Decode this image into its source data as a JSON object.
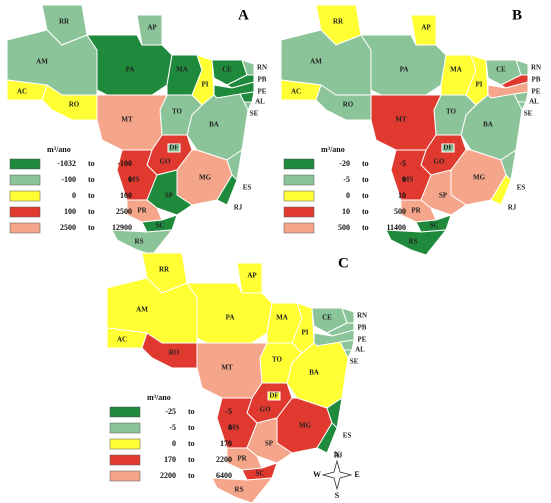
{
  "panels": [
    {
      "letter": "A",
      "unit": "m³/ano",
      "range_word": "to",
      "legend": [
        {
          "color": "#1f8a3c",
          "from": -1032,
          "to": -100
        },
        {
          "color": "#8cc49a",
          "from": -100,
          "to": 0
        },
        {
          "color": "#ffff33",
          "from": 0,
          "to": 100
        },
        {
          "color": "#e03a30",
          "from": 100,
          "to": 2500
        },
        {
          "color": "#f4a58a",
          "from": 2500,
          "to": 12900
        }
      ],
      "states": [
        {
          "label": "RR",
          "color": "#8cc49a"
        },
        {
          "label": "AP",
          "color": "#8cc49a"
        },
        {
          "label": "AM",
          "color": "#8cc49a"
        },
        {
          "label": "PA",
          "color": "#1f8a3c"
        },
        {
          "label": "MA",
          "color": "#1f8a3c"
        },
        {
          "label": "PI",
          "color": "#ffff33"
        },
        {
          "label": "CE",
          "color": "#1f8a3c"
        },
        {
          "label": "RN",
          "color": "#8cc49a"
        },
        {
          "label": "PB",
          "color": "#1f8a3c"
        },
        {
          "label": "PE",
          "color": "#1f8a3c"
        },
        {
          "label": "AL",
          "color": "#1f8a3c"
        },
        {
          "label": "SE",
          "color": "#8cc49a"
        },
        {
          "label": "BA",
          "color": "#8cc49a"
        },
        {
          "label": "TO",
          "color": "#8cc49a"
        },
        {
          "label": "AC",
          "color": "#ffff33"
        },
        {
          "label": "RO",
          "color": "#ffff33"
        },
        {
          "label": "MT",
          "color": "#f4a58a"
        },
        {
          "label": "GO",
          "color": "#e03a30"
        },
        {
          "label": "MG",
          "color": "#f4a58a"
        },
        {
          "label": "ES",
          "color": "#8cc49a"
        },
        {
          "label": "RJ",
          "color": "#1f8a3c"
        },
        {
          "label": "MS",
          "color": "#e03a30"
        },
        {
          "label": "SP",
          "color": "#1f8a3c"
        },
        {
          "label": "PR",
          "color": "#f4a58a"
        },
        {
          "label": "SC",
          "color": "#1f8a3c"
        },
        {
          "label": "RS",
          "color": "#8cc49a"
        },
        {
          "label": "DF",
          "color": "#8cc49a"
        }
      ]
    },
    {
      "letter": "B",
      "unit": "m³/ano",
      "range_word": "to",
      "legend": [
        {
          "color": "#1f8a3c",
          "from": -20,
          "to": -5
        },
        {
          "color": "#8cc49a",
          "from": -5,
          "to": 0
        },
        {
          "color": "#ffff33",
          "from": 0,
          "to": 10
        },
        {
          "color": "#e03a30",
          "from": 10,
          "to": 500
        },
        {
          "color": "#f4a58a",
          "from": 500,
          "to": 11400
        }
      ],
      "states": [
        {
          "label": "RR",
          "color": "#ffff33"
        },
        {
          "label": "AP",
          "color": "#ffff33"
        },
        {
          "label": "AM",
          "color": "#8cc49a"
        },
        {
          "label": "PA",
          "color": "#8cc49a"
        },
        {
          "label": "MA",
          "color": "#ffff33"
        },
        {
          "label": "PI",
          "color": "#ffff33"
        },
        {
          "label": "CE",
          "color": "#8cc49a"
        },
        {
          "label": "RN",
          "color": "#8cc49a"
        },
        {
          "label": "PB",
          "color": "#e03a30"
        },
        {
          "label": "PE",
          "color": "#f4a58a"
        },
        {
          "label": "AL",
          "color": "#8cc49a"
        },
        {
          "label": "SE",
          "color": "#8cc49a"
        },
        {
          "label": "BA",
          "color": "#8cc49a"
        },
        {
          "label": "TO",
          "color": "#8cc49a"
        },
        {
          "label": "AC",
          "color": "#ffff33"
        },
        {
          "label": "RO",
          "color": "#8cc49a"
        },
        {
          "label": "MT",
          "color": "#e03a30"
        },
        {
          "label": "GO",
          "color": "#e03a30"
        },
        {
          "label": "MG",
          "color": "#f4a58a"
        },
        {
          "label": "ES",
          "color": "#8cc49a"
        },
        {
          "label": "RJ",
          "color": "#ffff33"
        },
        {
          "label": "MS",
          "color": "#e03a30"
        },
        {
          "label": "SP",
          "color": "#f4a58a"
        },
        {
          "label": "PR",
          "color": "#f4a58a"
        },
        {
          "label": "SC",
          "color": "#1f8a3c"
        },
        {
          "label": "RS",
          "color": "#1f8a3c"
        },
        {
          "label": "DF",
          "color": "#8cc49a"
        }
      ]
    },
    {
      "letter": "C",
      "unit": "m³/ano",
      "range_word": "to",
      "legend": [
        {
          "color": "#1f8a3c",
          "from": -25,
          "to": -5
        },
        {
          "color": "#8cc49a",
          "from": -5,
          "to": 0
        },
        {
          "color": "#ffff33",
          "from": 0,
          "to": 170
        },
        {
          "color": "#e03a30",
          "from": 170,
          "to": 2200
        },
        {
          "color": "#f4a58a",
          "from": 2200,
          "to": 6400
        }
      ],
      "states": [
        {
          "label": "RR",
          "color": "#ffff33"
        },
        {
          "label": "AP",
          "color": "#ffff33"
        },
        {
          "label": "AM",
          "color": "#ffff33"
        },
        {
          "label": "PA",
          "color": "#ffff33"
        },
        {
          "label": "MA",
          "color": "#ffff33"
        },
        {
          "label": "PI",
          "color": "#ffff33"
        },
        {
          "label": "CE",
          "color": "#8cc49a"
        },
        {
          "label": "RN",
          "color": "#8cc49a"
        },
        {
          "label": "PB",
          "color": "#8cc49a"
        },
        {
          "label": "PE",
          "color": "#8cc49a"
        },
        {
          "label": "AL",
          "color": "#8cc49a"
        },
        {
          "label": "SE",
          "color": "#8cc49a"
        },
        {
          "label": "BA",
          "color": "#ffff33"
        },
        {
          "label": "TO",
          "color": "#ffff33"
        },
        {
          "label": "AC",
          "color": "#ffff33"
        },
        {
          "label": "RO",
          "color": "#e03a30"
        },
        {
          "label": "MT",
          "color": "#f4a58a"
        },
        {
          "label": "GO",
          "color": "#e03a30"
        },
        {
          "label": "MG",
          "color": "#e03a30"
        },
        {
          "label": "ES",
          "color": "#1f8a3c"
        },
        {
          "label": "RJ",
          "color": "#1f8a3c"
        },
        {
          "label": "MS",
          "color": "#e03a30"
        },
        {
          "label": "SP",
          "color": "#f4a58a"
        },
        {
          "label": "PR",
          "color": "#f4a58a"
        },
        {
          "label": "SC",
          "color": "#e03a30"
        },
        {
          "label": "RS",
          "color": "#f4a58a"
        },
        {
          "label": "DF",
          "color": "#ffff33"
        }
      ]
    }
  ],
  "compass": {
    "north": "N",
    "south": "S",
    "east": "E",
    "west": "W"
  }
}
